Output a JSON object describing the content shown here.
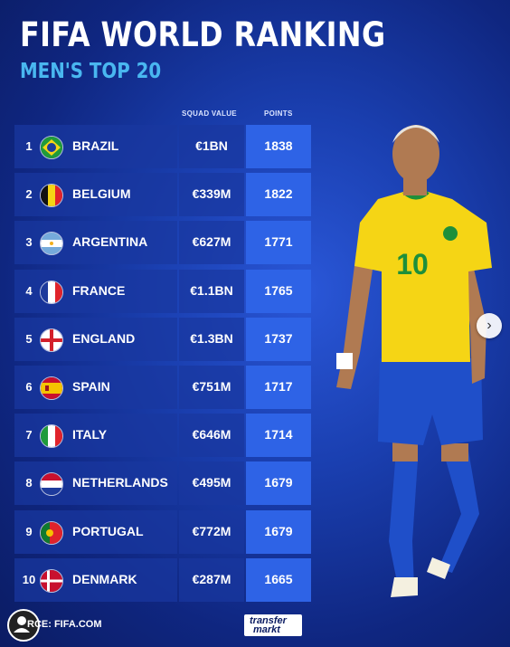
{
  "header": {
    "title": "FIFA WORLD RANKING",
    "subtitle": "MEN'S TOP 20"
  },
  "columns": {
    "squad_value": "SQUAD VALUE",
    "points": "POINTS"
  },
  "rows": [
    {
      "rank": "1",
      "country": "BRAZIL",
      "flag": "brazil-flag-icon",
      "squad_value": "€1BN",
      "points": "1838"
    },
    {
      "rank": "2",
      "country": "BELGIUM",
      "flag": "belgium-flag-icon",
      "squad_value": "€339M",
      "points": "1822"
    },
    {
      "rank": "3",
      "country": "ARGENTINA",
      "flag": "argentina-flag-icon",
      "squad_value": "€627M",
      "points": "1771"
    },
    {
      "rank": "4",
      "country": "FRANCE",
      "flag": "france-flag-icon",
      "squad_value": "€1.1BN",
      "points": "1765"
    },
    {
      "rank": "5",
      "country": "ENGLAND",
      "flag": "england-flag-icon",
      "squad_value": "€1.3BN",
      "points": "1737"
    },
    {
      "rank": "6",
      "country": "SPAIN",
      "flag": "spain-flag-icon",
      "squad_value": "€751M",
      "points": "1717"
    },
    {
      "rank": "7",
      "country": "ITALY",
      "flag": "italy-flag-icon",
      "squad_value": "€646M",
      "points": "1714"
    },
    {
      "rank": "8",
      "country": "NETHERLANDS",
      "flag": "netherlands-flag-icon",
      "squad_value": "€495M",
      "points": "1679"
    },
    {
      "rank": "9",
      "country": "PORTUGAL",
      "flag": "portugal-flag-icon",
      "squad_value": "€772M",
      "points": "1679"
    },
    {
      "rank": "10",
      "country": "DENMARK",
      "flag": "denmark-flag-icon",
      "squad_value": "€287M",
      "points": "1665"
    }
  ],
  "footer": {
    "source": "RCE: FIFA.COM",
    "logo_line1": "transfer",
    "logo_line2": "markt"
  },
  "player": {
    "jersey_number": "10"
  },
  "colors": {
    "background": "#1a3fb0",
    "subtitle": "#49b7f0",
    "row_bg": "#1937a0",
    "points_bg": "#2e63e6",
    "jersey": "#f5d515",
    "shorts": "#1f4fc9"
  },
  "icons": {
    "next": "chevron-right-icon",
    "avatar": "user-avatar-icon"
  }
}
